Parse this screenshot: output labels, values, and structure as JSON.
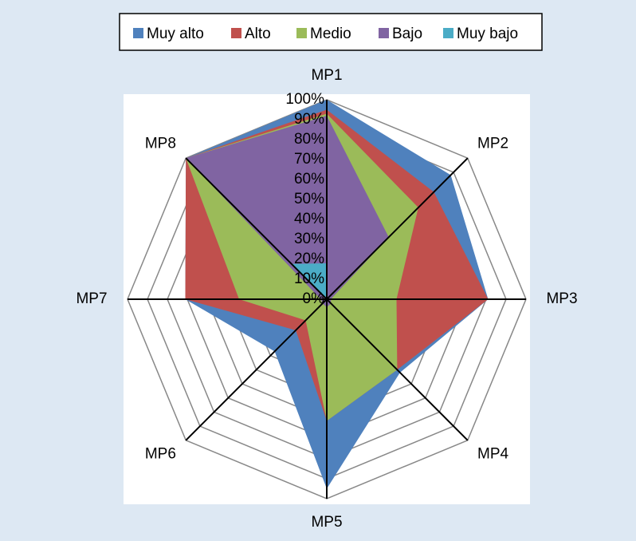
{
  "chart_data": {
    "type": "radar",
    "stacked": true,
    "categories": [
      "MP1",
      "MP2",
      "MP3",
      "MP4",
      "MP5",
      "MP6",
      "MP7",
      "MP8"
    ],
    "series": [
      {
        "name": "Muy alto",
        "color": "#4f81bd",
        "values": [
          5,
          12,
          0,
          2,
          34,
          15,
          0,
          0
        ]
      },
      {
        "name": "Alto",
        "color": "#c0504d",
        "values": [
          2,
          11,
          46,
          0,
          0,
          7,
          27,
          0
        ]
      },
      {
        "name": "Medio",
        "color": "#9bbb59",
        "values": [
          1,
          21,
          33,
          47,
          57,
          12,
          41,
          0
        ]
      },
      {
        "name": "Bajo",
        "color": "#8064a2",
        "values": [
          74,
          44,
          2,
          3,
          4,
          3,
          3,
          75
        ]
      },
      {
        "name": "Muy bajo",
        "color": "#4bacc6",
        "values": [
          18,
          0,
          0,
          0,
          0,
          0,
          0,
          25
        ]
      }
    ],
    "ylim": [
      0,
      100
    ],
    "yticks": [
      {
        "value": 0,
        "label": "0%"
      },
      {
        "value": 10,
        "label": "10%"
      },
      {
        "value": 20,
        "label": "20%"
      },
      {
        "value": 30,
        "label": "30%"
      },
      {
        "value": 40,
        "label": "40%"
      },
      {
        "value": 50,
        "label": "50%"
      },
      {
        "value": 60,
        "label": "60%"
      },
      {
        "value": 70,
        "label": "70%"
      },
      {
        "value": 80,
        "label": "80%"
      },
      {
        "value": 90,
        "label": "90%"
      },
      {
        "value": 100,
        "label": "100%"
      }
    ],
    "grid": true,
    "legend": "top"
  }
}
